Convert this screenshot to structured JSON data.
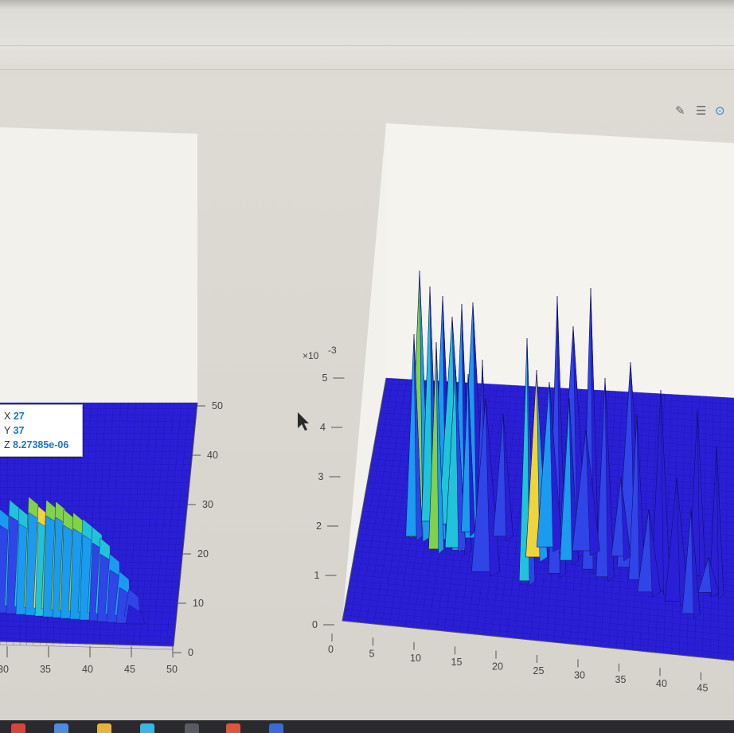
{
  "toolbar": {
    "icons": [
      "edit-icon",
      "legend-icon",
      "rotate-icon"
    ]
  },
  "datatip": {
    "x_label": "X",
    "x_value": "27",
    "y_label": "Y",
    "y_value": "37",
    "z_label": "Z",
    "z_value": "8.27385e-06"
  },
  "colors": {
    "surface_base": "#2a1fd6",
    "surface_mid": "#1a9bf0",
    "surface_cyan": "#20c4d8",
    "surface_green": "#7fd24a",
    "surface_yellow": "#f0d43a",
    "axes_background": "#f3f1ec"
  },
  "chart_data": [
    {
      "type": "surface",
      "x_ticks": [
        "30",
        "35",
        "40",
        "45",
        "50"
      ],
      "y_ticks": [
        "0",
        "10",
        "20",
        "30",
        "40",
        "50"
      ],
      "colormap": "parula",
      "datatip": {
        "x": 27,
        "y": 37,
        "z": 8.27385e-06
      }
    },
    {
      "type": "surface",
      "x_ticks": [
        "0",
        "5",
        "10",
        "15",
        "20",
        "25",
        "30",
        "35",
        "40",
        "45",
        "5"
      ],
      "z_ticks": [
        "0",
        "1",
        "2",
        "3",
        "4",
        "5"
      ],
      "z_exponent": "×10",
      "z_exponent_power": "-3",
      "zlim": [
        0,
        0.005
      ],
      "colormap": "parula"
    }
  ]
}
